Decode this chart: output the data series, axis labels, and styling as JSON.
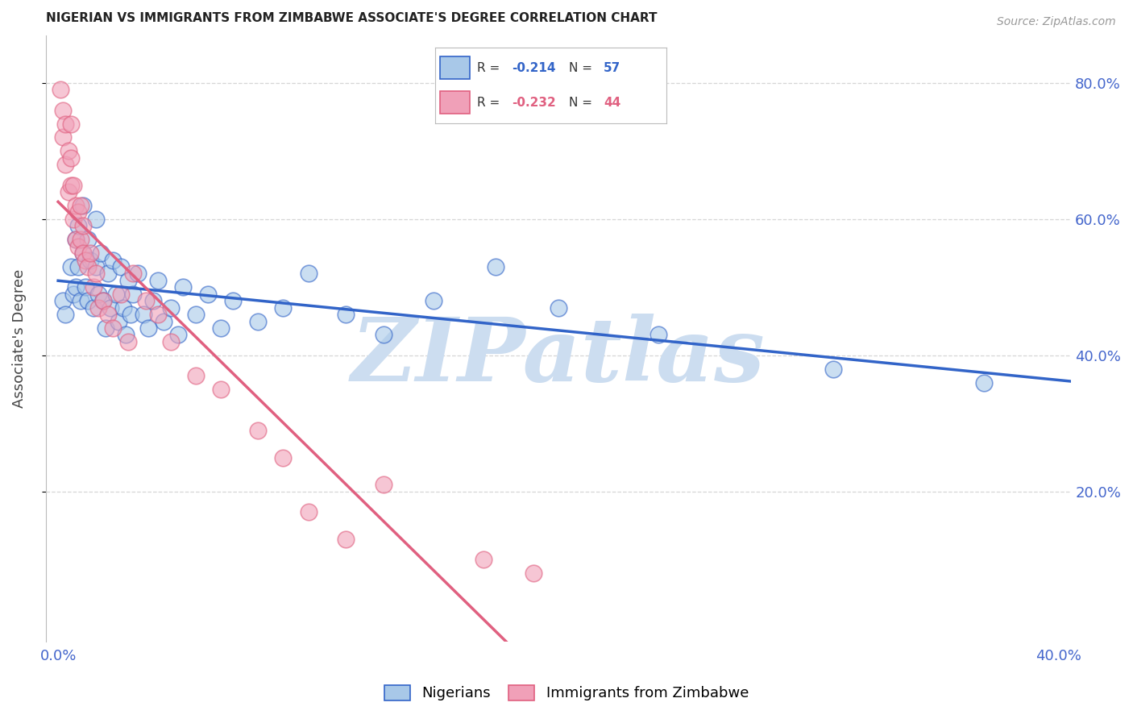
{
  "title": "NIGERIAN VS IMMIGRANTS FROM ZIMBABWE ASSOCIATE'S DEGREE CORRELATION CHART",
  "source": "Source: ZipAtlas.com",
  "ylabel": "Associate's Degree",
  "xlim": [
    -0.005,
    0.405
  ],
  "ylim": [
    -0.02,
    0.87
  ],
  "yticks": [
    0.2,
    0.4,
    0.6,
    0.8
  ],
  "ytick_labels": [
    "20.0%",
    "40.0%",
    "60.0%",
    "80.0%"
  ],
  "xtick_positions": [
    0.0,
    0.1,
    0.2,
    0.3,
    0.4
  ],
  "xtick_labels": [
    "0.0%",
    "",
    "",
    "",
    "40.0%"
  ],
  "legend_blue_R": "-0.214",
  "legend_blue_N": "57",
  "legend_pink_R": "-0.232",
  "legend_pink_N": "44",
  "blue_scatter_x": [
    0.002,
    0.003,
    0.005,
    0.006,
    0.007,
    0.007,
    0.008,
    0.008,
    0.009,
    0.01,
    0.01,
    0.011,
    0.012,
    0.012,
    0.013,
    0.014,
    0.015,
    0.015,
    0.016,
    0.017,
    0.018,
    0.019,
    0.02,
    0.021,
    0.022,
    0.023,
    0.024,
    0.025,
    0.026,
    0.027,
    0.028,
    0.029,
    0.03,
    0.032,
    0.034,
    0.036,
    0.038,
    0.04,
    0.042,
    0.045,
    0.048,
    0.05,
    0.055,
    0.06,
    0.065,
    0.07,
    0.08,
    0.09,
    0.1,
    0.115,
    0.13,
    0.15,
    0.175,
    0.2,
    0.24,
    0.31,
    0.37
  ],
  "blue_scatter_y": [
    0.48,
    0.46,
    0.53,
    0.49,
    0.57,
    0.5,
    0.59,
    0.53,
    0.48,
    0.62,
    0.55,
    0.5,
    0.57,
    0.48,
    0.54,
    0.47,
    0.6,
    0.53,
    0.49,
    0.55,
    0.48,
    0.44,
    0.52,
    0.47,
    0.54,
    0.49,
    0.45,
    0.53,
    0.47,
    0.43,
    0.51,
    0.46,
    0.49,
    0.52,
    0.46,
    0.44,
    0.48,
    0.51,
    0.45,
    0.47,
    0.43,
    0.5,
    0.46,
    0.49,
    0.44,
    0.48,
    0.45,
    0.47,
    0.52,
    0.46,
    0.43,
    0.48,
    0.53,
    0.47,
    0.43,
    0.38,
    0.36
  ],
  "pink_scatter_x": [
    0.001,
    0.002,
    0.002,
    0.003,
    0.003,
    0.004,
    0.004,
    0.005,
    0.005,
    0.005,
    0.006,
    0.006,
    0.007,
    0.007,
    0.008,
    0.008,
    0.009,
    0.009,
    0.01,
    0.01,
    0.011,
    0.012,
    0.013,
    0.014,
    0.015,
    0.016,
    0.018,
    0.02,
    0.022,
    0.025,
    0.028,
    0.03,
    0.035,
    0.04,
    0.045,
    0.055,
    0.065,
    0.08,
    0.09,
    0.1,
    0.115,
    0.13,
    0.17,
    0.19
  ],
  "pink_scatter_y": [
    0.79,
    0.76,
    0.72,
    0.74,
    0.68,
    0.7,
    0.64,
    0.74,
    0.69,
    0.65,
    0.65,
    0.6,
    0.62,
    0.57,
    0.61,
    0.56,
    0.62,
    0.57,
    0.59,
    0.55,
    0.54,
    0.53,
    0.55,
    0.5,
    0.52,
    0.47,
    0.48,
    0.46,
    0.44,
    0.49,
    0.42,
    0.52,
    0.48,
    0.46,
    0.42,
    0.37,
    0.35,
    0.29,
    0.25,
    0.17,
    0.13,
    0.21,
    0.1,
    0.08
  ],
  "blue_line_color": "#3264c8",
  "pink_line_color": "#e06080",
  "blue_face_color": "#a8c8e8",
  "pink_face_color": "#f0a0b8",
  "background_color": "#ffffff",
  "grid_color": "#cccccc",
  "axis_label_color": "#4466cc",
  "tick_label_color": "#4466cc",
  "ylabel_color": "#444444",
  "watermark": "ZIPatlas",
  "watermark_color": "#ccddf0",
  "title_color": "#222222",
  "source_color": "#999999"
}
